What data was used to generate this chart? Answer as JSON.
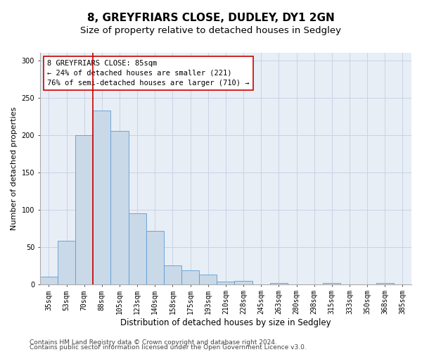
{
  "title1": "8, GREYFRIARS CLOSE, DUDLEY, DY1 2GN",
  "title2": "Size of property relative to detached houses in Sedgley",
  "xlabel": "Distribution of detached houses by size in Sedgley",
  "ylabel": "Number of detached properties",
  "categories": [
    "35sqm",
    "53sqm",
    "70sqm",
    "88sqm",
    "105sqm",
    "123sqm",
    "140sqm",
    "158sqm",
    "175sqm",
    "193sqm",
    "210sqm",
    "228sqm",
    "245sqm",
    "263sqm",
    "280sqm",
    "298sqm",
    "315sqm",
    "333sqm",
    "350sqm",
    "368sqm",
    "385sqm"
  ],
  "values": [
    10,
    58,
    200,
    233,
    205,
    95,
    71,
    25,
    18,
    13,
    3,
    4,
    0,
    1,
    0,
    0,
    1,
    0,
    0,
    1,
    0
  ],
  "bar_color": "#c9d9e8",
  "bar_edge_color": "#5b9bd5",
  "vline_x_index": 3,
  "vline_color": "#cc0000",
  "annotation_text": "8 GREYFRIARS CLOSE: 85sqm\n← 24% of detached houses are smaller (221)\n76% of semi-detached houses are larger (710) →",
  "annotation_box_color": "#ffffff",
  "annotation_box_edge": "#cc0000",
  "ylim": [
    0,
    310
  ],
  "yticks": [
    0,
    50,
    100,
    150,
    200,
    250,
    300
  ],
  "grid_color": "#c8d4e4",
  "background_color": "#e8eef6",
  "footer1": "Contains HM Land Registry data © Crown copyright and database right 2024.",
  "footer2": "Contains public sector information licensed under the Open Government Licence v3.0.",
  "title1_fontsize": 11,
  "title2_fontsize": 9.5,
  "xlabel_fontsize": 8.5,
  "ylabel_fontsize": 8,
  "tick_fontsize": 7,
  "annotation_fontsize": 7.5,
  "footer_fontsize": 6.5
}
